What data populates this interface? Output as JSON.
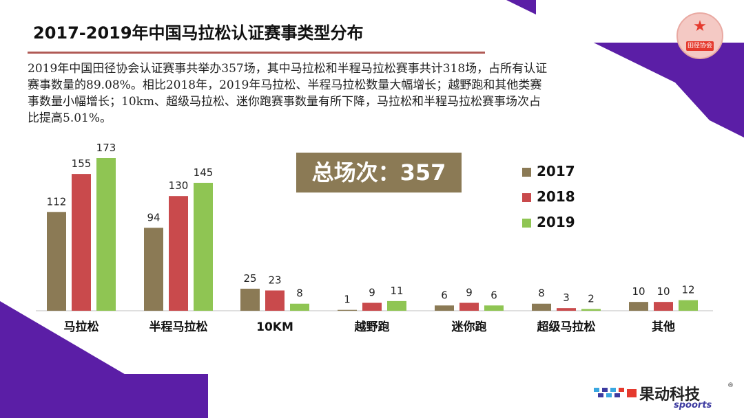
{
  "slide": {
    "title": "2017-2019年中国马拉松认证赛事类型分布",
    "description": "2019年中国田径协会认证赛事共举办357场，其中马拉松和半程马拉松赛事共计318场，占所有认证赛事数量的89.08%。相比2018年，2019年马拉松、半程马拉松数量大幅增长；越野跑和其他类赛事数量小幅增长；10km、超级马拉松、迷你跑赛事数量有所下降，马拉松和半程马拉松赛事场次占比提高5.01%。",
    "total_label": "总场次：357",
    "badge_text": "田径协会",
    "logo_cn": "果动科技",
    "logo_en": "spoorts",
    "logo_reg": "®"
  },
  "colors": {
    "accent_purple": "#5b1ea6",
    "title_rule": "#b05a55",
    "total_box": "#8b7a55"
  },
  "chart_data": {
    "type": "bar",
    "categories": [
      "马拉松",
      "半程马拉松",
      "10KM",
      "越野跑",
      "迷你跑",
      "超级马拉松",
      "其他"
    ],
    "series": [
      {
        "name": "2017",
        "color": "#8b7a55",
        "values": [
          112,
          94,
          25,
          1,
          6,
          8,
          10
        ]
      },
      {
        "name": "2018",
        "color": "#c94a4c",
        "values": [
          155,
          130,
          23,
          9,
          9,
          3,
          10
        ]
      },
      {
        "name": "2019",
        "color": "#8fc553",
        "values": [
          173,
          145,
          8,
          11,
          6,
          2,
          12
        ]
      }
    ],
    "legend_position": "right",
    "grid": false,
    "ylim": [
      0,
      173
    ]
  }
}
